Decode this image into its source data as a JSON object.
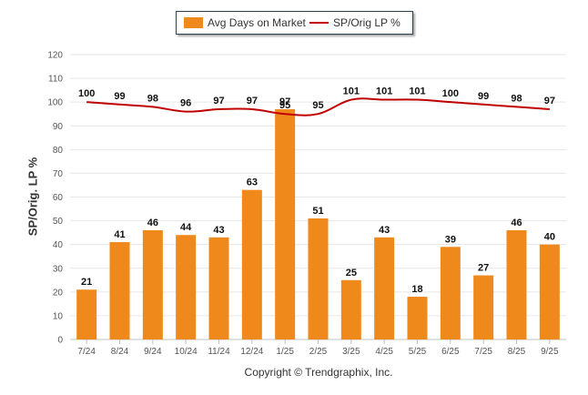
{
  "chart_data": {
    "type": "bar+line",
    "categories": [
      "7/24",
      "8/24",
      "9/24",
      "10/24",
      "11/24",
      "12/24",
      "1/25",
      "2/25",
      "3/25",
      "4/25",
      "5/25",
      "6/25",
      "7/25",
      "8/25",
      "9/25"
    ],
    "series": [
      {
        "name": "Avg Days on Market",
        "type": "bar",
        "color": "#f0891c",
        "values": [
          21,
          41,
          46,
          44,
          43,
          63,
          97,
          51,
          25,
          43,
          18,
          39,
          27,
          46,
          40
        ]
      },
      {
        "name": "SP/Orig LP %",
        "type": "line",
        "color": "#c00000",
        "values": [
          100,
          99,
          98,
          96,
          97,
          97,
          95,
          95,
          101,
          101,
          101,
          100,
          99,
          98,
          97
        ]
      }
    ],
    "ylabel": "SP/Orig. LP %",
    "ylim": [
      0,
      120
    ],
    "yticks": [
      0,
      10,
      20,
      30,
      40,
      50,
      60,
      70,
      80,
      90,
      100,
      110,
      120
    ],
    "grid": true,
    "legend_position": "top-center"
  },
  "legend": {
    "bar_label": "Avg Days on Market",
    "line_label": "SP/Orig LP %"
  },
  "footer": {
    "copyright": "Copyright © Trendgraphix, Inc."
  },
  "colors": {
    "bar": "#f0891c",
    "line": "#c00000",
    "grid": "#e6e6e6"
  }
}
